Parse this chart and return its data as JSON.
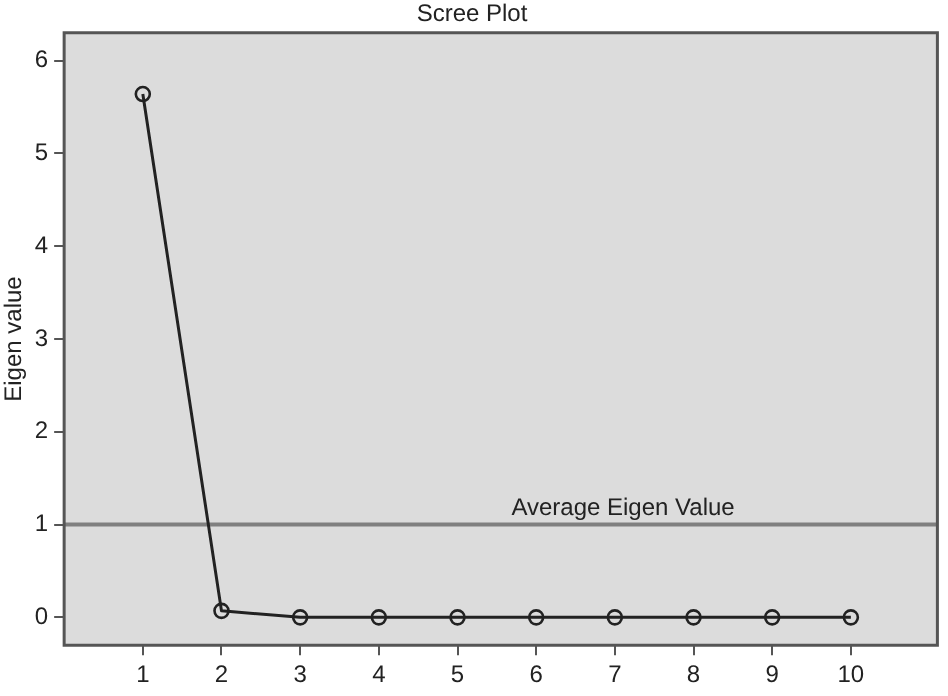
{
  "chart_data": {
    "type": "line",
    "title": "Scree Plot",
    "ylabel": "Eigen value",
    "x": [
      1,
      2,
      3,
      4,
      5,
      6,
      7,
      8,
      9,
      10
    ],
    "series": [
      {
        "color": "#222222",
        "values": [
          5.64,
          0.07,
          0,
          0,
          0,
          0,
          0,
          0,
          0,
          0
        ]
      }
    ],
    "xlim": [
      0,
      11.1
    ],
    "xticks": [
      1,
      2,
      3,
      4,
      5,
      6,
      7,
      8,
      9,
      10
    ],
    "ylim": [
      -0.3,
      6.3
    ],
    "yticks": [
      0,
      1,
      2,
      3,
      4,
      5,
      6
    ],
    "ref_lines": [
      {
        "axis": "y",
        "value": 1,
        "label": "Average Eigen Value",
        "color": "#808080"
      }
    ],
    "grid": false,
    "legend": false,
    "marker": "circle",
    "line_style": "solid"
  }
}
